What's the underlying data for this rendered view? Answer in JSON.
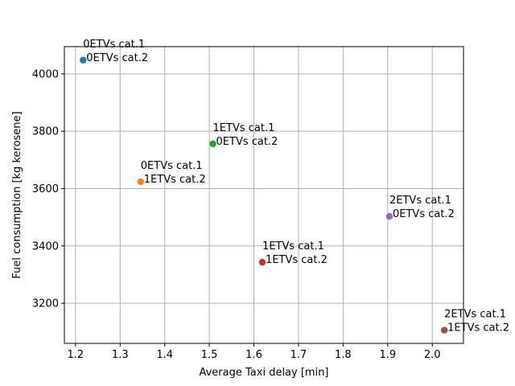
{
  "chart_data": {
    "type": "scatter",
    "title": "",
    "xlabel": "Average Taxi delay [min]",
    "ylabel": "Fuel consumption [kg kerosene]",
    "xlim": [
      1.175,
      2.07
    ],
    "ylim": [
      3060,
      4095
    ],
    "xticks": [
      1.2,
      1.3,
      1.4,
      1.5,
      1.6,
      1.7,
      1.8,
      1.9,
      2.0
    ],
    "xtick_labels": [
      "1.2",
      "1.3",
      "1.4",
      "1.5",
      "1.6",
      "1.7",
      "1.8",
      "1.9",
      "2.0"
    ],
    "yticks": [
      3200,
      3400,
      3600,
      3800,
      4000
    ],
    "ytick_labels": [
      "3200",
      "3400",
      "3600",
      "3800",
      "4000"
    ],
    "grid": true,
    "points": [
      {
        "x": 1.217,
        "y": 4048,
        "color": "#1f77b4",
        "label_line1": "0ETVs cat.1",
        "label_line2": "0ETVs cat.2"
      },
      {
        "x": 1.346,
        "y": 3624,
        "color": "#ff7f0e",
        "label_line1": "0ETVs cat.1",
        "label_line2": "1ETVs cat.2"
      },
      {
        "x": 1.508,
        "y": 3756,
        "color": "#2ca02c",
        "label_line1": "1ETVs cat.1",
        "label_line2": "0ETVs cat.2"
      },
      {
        "x": 1.619,
        "y": 3343,
        "color": "#d62728",
        "label_line1": "1ETVs cat.1",
        "label_line2": "1ETVs cat.2"
      },
      {
        "x": 1.904,
        "y": 3503,
        "color": "#9467bd",
        "label_line1": "2ETVs cat.1",
        "label_line2": "0ETVs cat.2"
      },
      {
        "x": 2.027,
        "y": 3106,
        "color": "#8c564b",
        "label_line1": "2ETVs cat.1",
        "label_line2": "1ETVs cat.2"
      }
    ]
  }
}
